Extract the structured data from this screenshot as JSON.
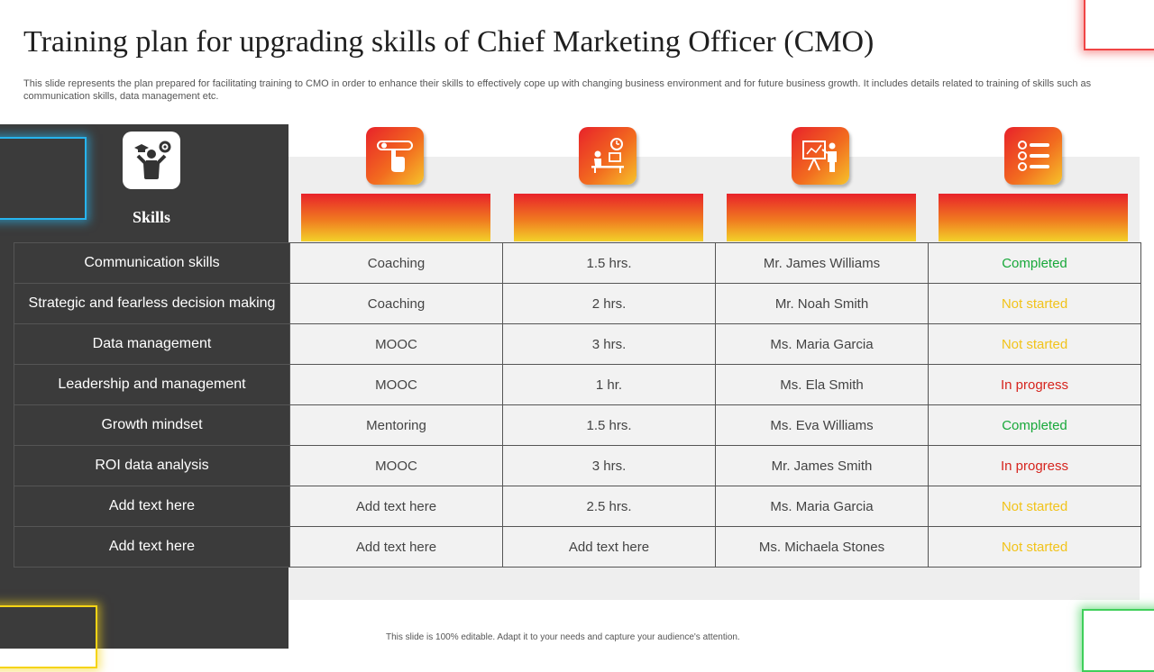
{
  "title": "Training plan for upgrading skills of Chief Marketing Officer (CMO)",
  "subtitle": "This slide represents the plan prepared for facilitating training to CMO  in order to enhance their skills to effectively cope up with changing business environment and for future business growth. It includes details related to training of skills such as communication skills, data management etc.",
  "skills_header": "Skills",
  "columns": [
    {
      "icon": "hand-click-icon"
    },
    {
      "icon": "clock-desk-icon"
    },
    {
      "icon": "presenter-board-icon"
    },
    {
      "icon": "checklist-icon"
    }
  ],
  "rows": [
    {
      "skill": "Communication skills",
      "method": "Coaching",
      "duration": "1.5 hrs.",
      "trainer": "Mr. James Williams",
      "status": "Completed"
    },
    {
      "skill": "Strategic and fearless decision making",
      "method": "Coaching",
      "duration": "2 hrs.",
      "trainer": "Mr. Noah Smith",
      "status": "Not started"
    },
    {
      "skill": "Data management",
      "method": "MOOC",
      "duration": "3 hrs.",
      "trainer": "Ms. Maria Garcia",
      "status": "Not started"
    },
    {
      "skill": "Leadership and management",
      "method": "MOOC",
      "duration": "1 hr.",
      "trainer": "Ms. Ela Smith",
      "status": "In progress"
    },
    {
      "skill": "Growth mindset",
      "method": "Mentoring",
      "duration": "1.5 hrs.",
      "trainer": "Ms. Eva Williams",
      "status": "Completed"
    },
    {
      "skill": "ROI data analysis",
      "method": "MOOC",
      "duration": "3 hrs.",
      "trainer": "Mr. James Smith",
      "status": "In progress"
    },
    {
      "skill": "Add text here",
      "method": "Add text here",
      "duration": "2.5 hrs.",
      "trainer": "Ms. Maria Garcia",
      "status": "Not started"
    },
    {
      "skill": "Add text here",
      "method": "Add text here",
      "duration": "Add text here",
      "trainer": "Ms. Michaela Stones",
      "status": "Not started"
    }
  ],
  "status_colors": {
    "Completed": "#18a83a",
    "Not started": "#f2c31a",
    "In progress": "#d6241e"
  },
  "footer": "This slide is 100% editable. Adapt it to your needs and capture your audience's attention."
}
